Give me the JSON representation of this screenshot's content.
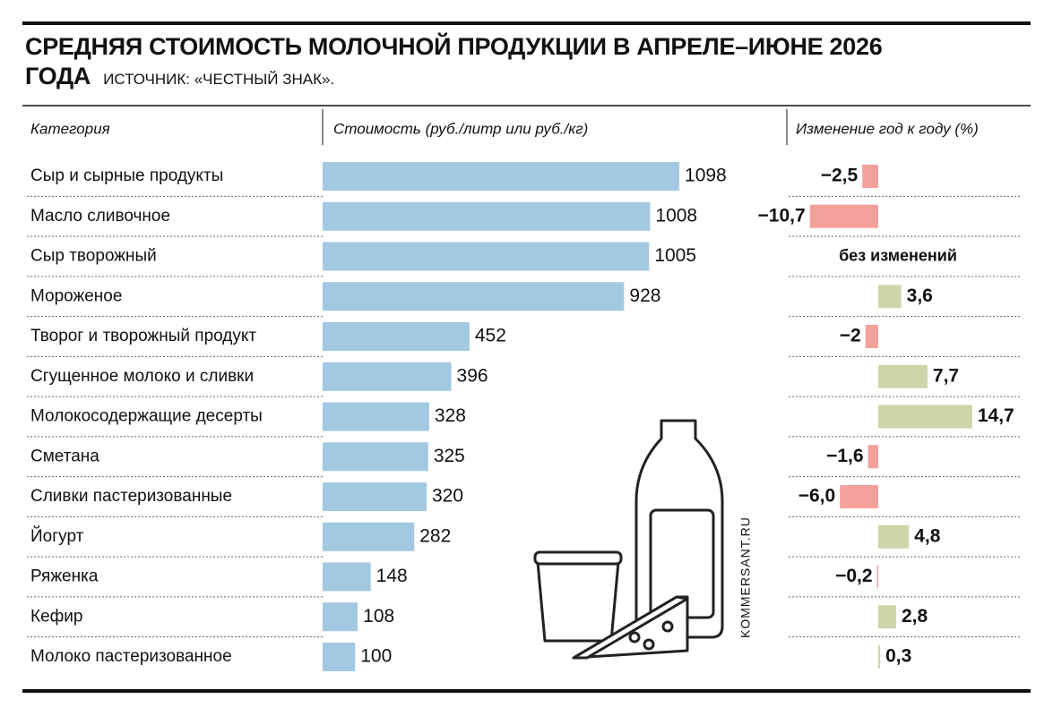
{
  "title": "СРЕДНЯЯ СТОИМОСТЬ МОЛОЧНОЙ ПРОДУКЦИИ В АПРЕЛЕ–ИЮНЕ 2026 ГОДА",
  "source": "ИСТОЧНИК: «ЧЕСТНЫЙ ЗНАК».",
  "watermark": "KOMMERSANT.RU",
  "chart_data": [
    {
      "type": "bar",
      "orientation": "horizontal",
      "category_label": "Категория",
      "value_label": "Стоимость (руб./литр или руб./кг)",
      "categories": [
        "Сыр и сырные продукты",
        "Масло сливочное",
        "Сыр творожный",
        "Мороженое",
        "Творог и творожный продукт",
        "Сгущенное молоко и сливки",
        "Молокосодержащие десерты",
        "Сметана",
        "Сливки пастеризованные",
        "Йогурт",
        "Ряженка",
        "Кефир",
        "Молоко пастеризованное"
      ],
      "values": [
        1098,
        1008,
        1005,
        928,
        452,
        396,
        328,
        325,
        320,
        282,
        148,
        108,
        100
      ],
      "color": "#a3c8e2",
      "xlim": [
        0,
        1200
      ]
    },
    {
      "type": "bar",
      "orientation": "horizontal",
      "value_label": "Изменение год к году (%)",
      "values": [
        -2.5,
        -10.7,
        0,
        3.6,
        -2,
        7.7,
        14.7,
        -1.6,
        -6.0,
        4.8,
        -0.2,
        2.8,
        0.3
      ],
      "value_labels": [
        "−2,5",
        "−10,7",
        "без изменений",
        "3,6",
        "−2",
        "7,7",
        "14,7",
        "−1,6",
        "−6,0",
        "4,8",
        "−0,2",
        "2,8",
        "0,3"
      ],
      "negative_color": "#f4a19b",
      "positive_color": "#cfd5ab",
      "xlim": [
        -15,
        15
      ]
    }
  ]
}
